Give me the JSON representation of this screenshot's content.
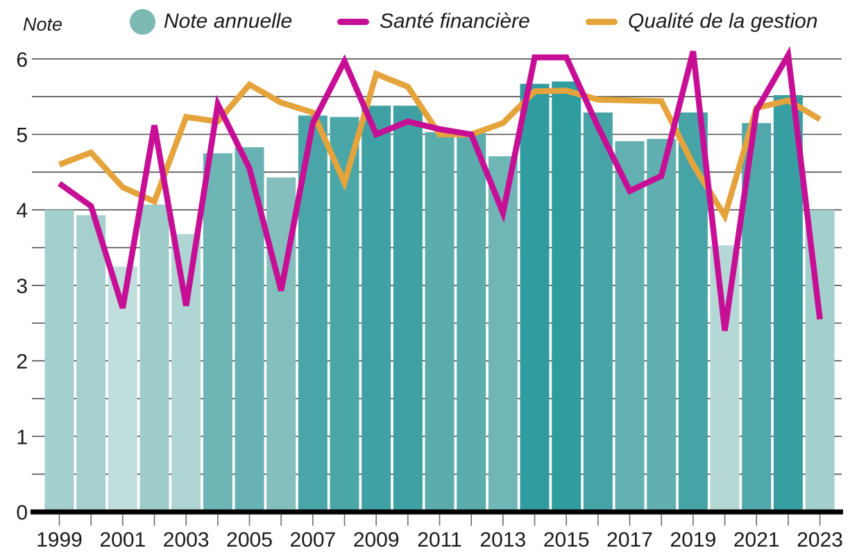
{
  "header": {
    "axis_label": "Note",
    "legend": [
      {
        "label": "Note annuelle",
        "swatch": "dot",
        "color": "#7db9b3"
      },
      {
        "label": "Santé financière",
        "swatch": "line",
        "color": "#c70f96"
      },
      {
        "label": "Qualité de la gestion",
        "swatch": "line",
        "color": "#e5a33c"
      }
    ]
  },
  "chart_data": {
    "type": "bar+line",
    "title": "",
    "ylabel": "Note",
    "xlabel": "",
    "ylim": [
      0,
      6
    ],
    "yticks": [
      0,
      1,
      2,
      3,
      4,
      5,
      6
    ],
    "grid_step": 0.5,
    "grid_on": true,
    "legend_position": "top",
    "x_labels_every": 2,
    "categories": [
      1999,
      2000,
      2001,
      2002,
      2003,
      2004,
      2005,
      2006,
      2007,
      2008,
      2009,
      2010,
      2011,
      2012,
      2013,
      2014,
      2015,
      2016,
      2017,
      2018,
      2019,
      2020,
      2021,
      2022,
      2023
    ],
    "series": [
      {
        "name": "Note annuelle",
        "type": "bar",
        "values": [
          4.0,
          3.93,
          3.25,
          4.07,
          3.68,
          4.75,
          4.83,
          4.43,
          5.25,
          5.23,
          5.38,
          5.38,
          5.03,
          5.02,
          4.71,
          5.67,
          5.7,
          5.29,
          4.91,
          4.94,
          5.29,
          3.53,
          5.15,
          5.52,
          4.0
        ]
      },
      {
        "name": "Santé financière",
        "type": "line",
        "color": "#c70f96",
        "values": [
          4.35,
          4.05,
          2.7,
          5.12,
          2.73,
          5.4,
          4.55,
          2.93,
          5.15,
          5.97,
          5.0,
          5.17,
          5.07,
          5.0,
          3.96,
          6.02,
          6.02,
          5.1,
          4.25,
          4.45,
          6.1,
          2.4,
          5.32,
          6.05,
          2.55
        ]
      },
      {
        "name": "Qualité de la gestion",
        "type": "line",
        "color": "#e5a33c",
        "values": [
          4.6,
          4.76,
          4.3,
          4.11,
          5.23,
          5.17,
          5.66,
          5.42,
          5.29,
          4.36,
          5.8,
          5.63,
          5.0,
          5.0,
          5.15,
          5.57,
          5.58,
          5.46,
          5.45,
          5.44,
          4.6,
          3.92,
          5.35,
          5.45,
          5.2
        ]
      }
    ],
    "bar_color_stops": [
      [
        3.25,
        "#c0dedd"
      ],
      [
        4.0,
        "#a3cfcd"
      ],
      [
        4.5,
        "#7fbcbc"
      ],
      [
        5.0,
        "#5dadae"
      ],
      [
        5.4,
        "#3da0a3"
      ],
      [
        5.7,
        "#2f9c9f"
      ]
    ],
    "colors": {
      "background": "#ffffff",
      "gridline": "#4c4c4c",
      "axis": "#000000",
      "tick": "#6b6b6b",
      "text": "#1a1a1a"
    }
  }
}
